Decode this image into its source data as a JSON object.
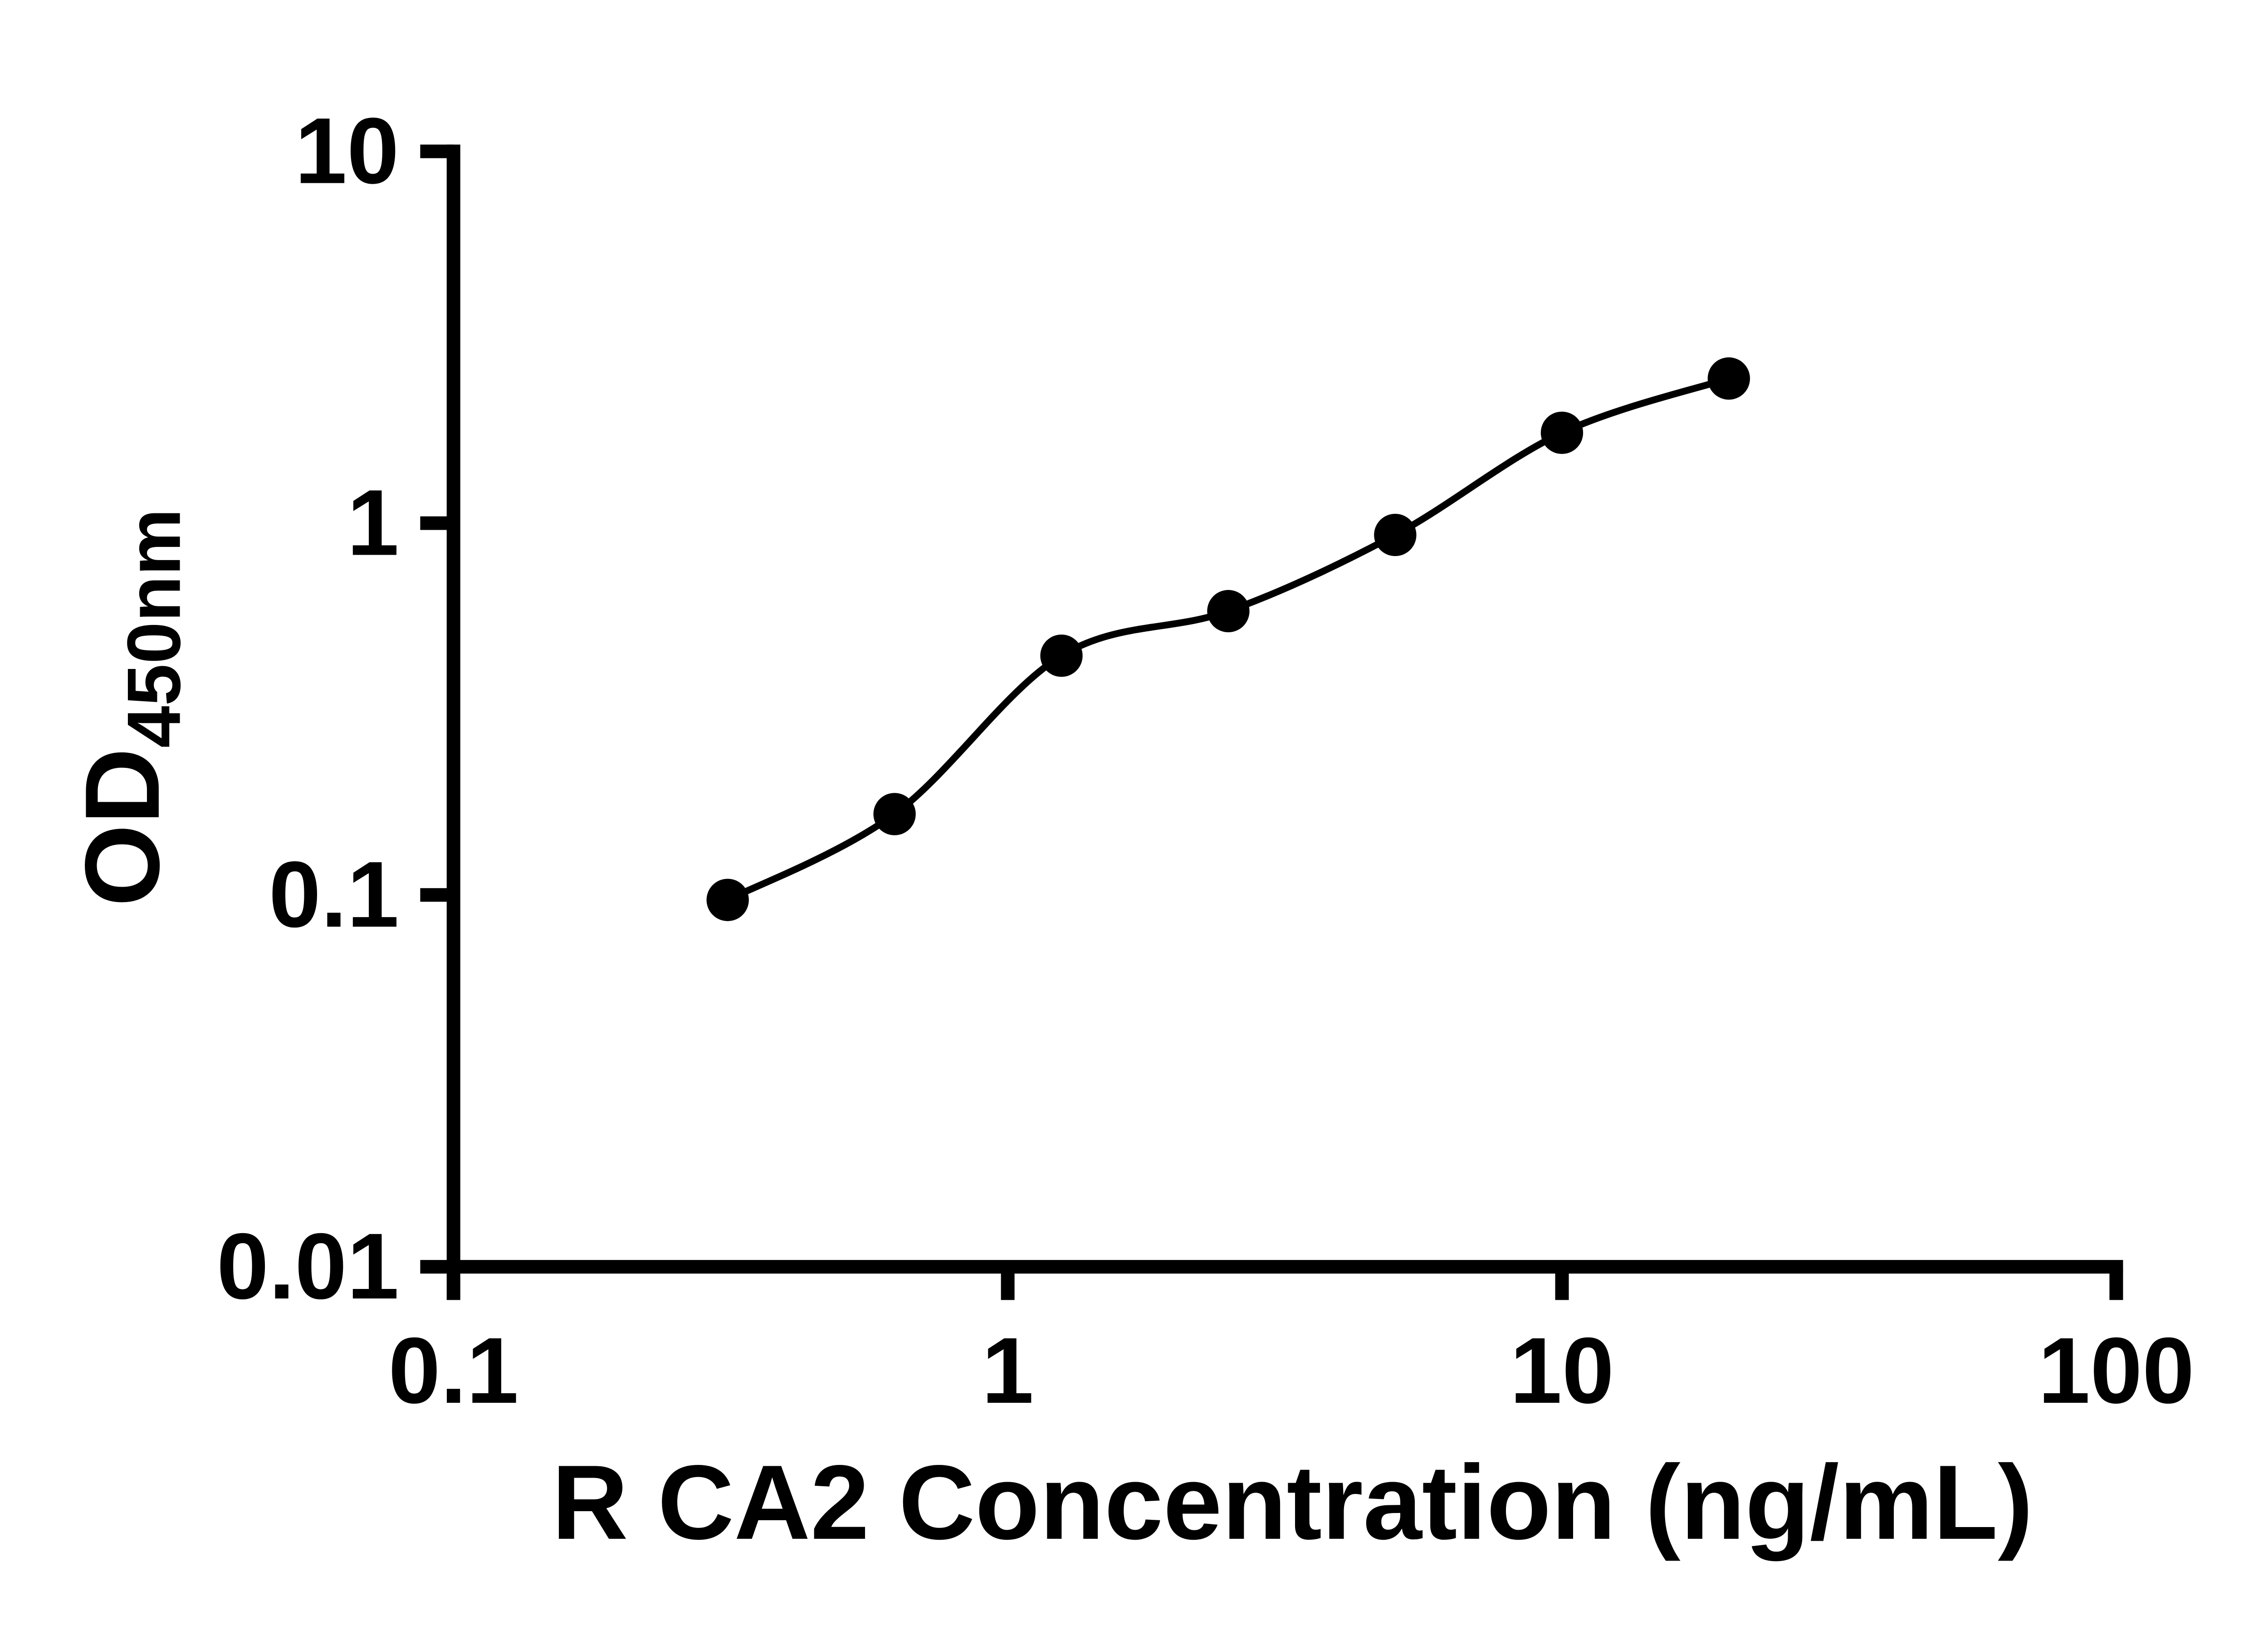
{
  "chart_data": {
    "type": "scatter",
    "title": "",
    "xlabel": "R CA2 Concentration (ng/mL)",
    "ylabel": "OD",
    "ylabel_sub": "450nm",
    "x_scale": "log",
    "y_scale": "log",
    "xlim": [
      0.1,
      100
    ],
    "ylim": [
      0.01,
      10
    ],
    "x_ticks": [
      0.1,
      1,
      10,
      100
    ],
    "x_tick_labels": [
      "0.1",
      "1",
      "10",
      "100"
    ],
    "y_ticks": [
      0.01,
      0.1,
      1,
      10
    ],
    "y_tick_labels": [
      "0.01",
      "0.1",
      "1",
      "10"
    ],
    "grid": "off",
    "legend": "none",
    "curve": "smooth fit through points (4PL standard curve)",
    "points": [
      {
        "x": 0.3125,
        "y": 0.097
      },
      {
        "x": 0.625,
        "y": 0.165
      },
      {
        "x": 1.25,
        "y": 0.44
      },
      {
        "x": 2.5,
        "y": 0.58
      },
      {
        "x": 5,
        "y": 0.93
      },
      {
        "x": 10,
        "y": 1.75
      },
      {
        "x": 20,
        "y": 2.45
      }
    ],
    "marker_color": "#000000",
    "line_color": "#000000",
    "axis_color": "#000000",
    "background_color": "#ffffff"
  }
}
